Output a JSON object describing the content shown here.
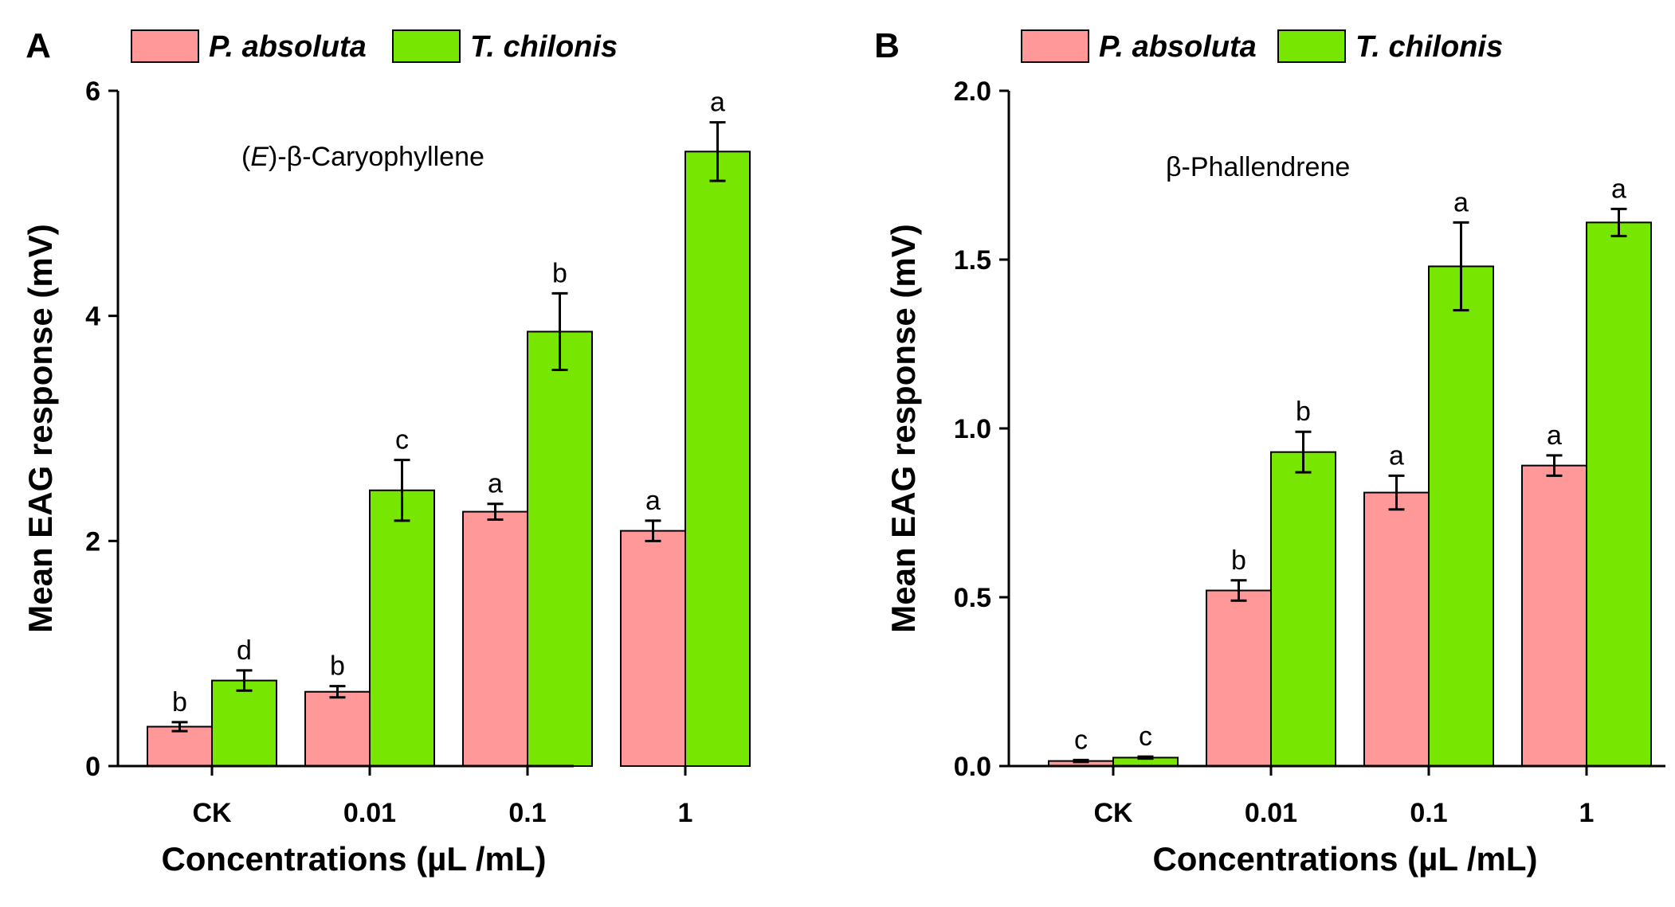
{
  "colors": {
    "series_a": "#ff9999",
    "series_b": "#77e600"
  },
  "chart_data": [
    {
      "type": "bar",
      "panel": "A",
      "title": "(E)-β-Caryophyllene",
      "title_italic_part": "E",
      "xlabel": "Concentrations (µL /mL)",
      "ylabel": "Mean EAG response (mV)",
      "ylim": [
        0,
        6
      ],
      "yticks": [
        0,
        2,
        4,
        6
      ],
      "ytick_labels": [
        "0",
        "2",
        "4",
        "6"
      ],
      "categories": [
        "CK",
        "0.01",
        "0.1",
        "1"
      ],
      "legend_position": "top-left",
      "series": [
        {
          "name": "P. absoluta",
          "values": [
            0.35,
            0.66,
            2.26,
            2.09
          ],
          "errors": [
            0.04,
            0.05,
            0.07,
            0.09
          ],
          "letters": [
            "b",
            "b",
            "a",
            "a"
          ]
        },
        {
          "name": "T. chilonis",
          "values": [
            0.76,
            2.45,
            3.86,
            5.46
          ],
          "errors": [
            0.09,
            0.27,
            0.34,
            0.26
          ],
          "letters": [
            "d",
            "c",
            "b",
            "a"
          ]
        }
      ]
    },
    {
      "type": "bar",
      "panel": "B",
      "title": "β-Phallendrene",
      "title_italic_part": "",
      "xlabel": "Concentrations (µL /mL)",
      "ylabel": "Mean EAG response (mV)",
      "ylim": [
        0,
        2
      ],
      "yticks": [
        0,
        0.5,
        1,
        1.5,
        2
      ],
      "ytick_labels": [
        "0.0",
        "0.5",
        "1.0",
        "1.5",
        "2.0"
      ],
      "categories": [
        "CK",
        "0.01",
        "0.1",
        "1"
      ],
      "legend_position": "top-left",
      "series": [
        {
          "name": "P. absoluta",
          "values": [
            0.015,
            0.52,
            0.81,
            0.89
          ],
          "errors": [
            0.003,
            0.03,
            0.05,
            0.03
          ],
          "letters": [
            "c",
            "b",
            "a",
            "a"
          ]
        },
        {
          "name": "T. chilonis",
          "values": [
            0.025,
            0.93,
            1.48,
            1.61
          ],
          "errors": [
            0.003,
            0.06,
            0.13,
            0.04
          ],
          "letters": [
            "c",
            "b",
            "a",
            "a"
          ]
        }
      ]
    }
  ]
}
